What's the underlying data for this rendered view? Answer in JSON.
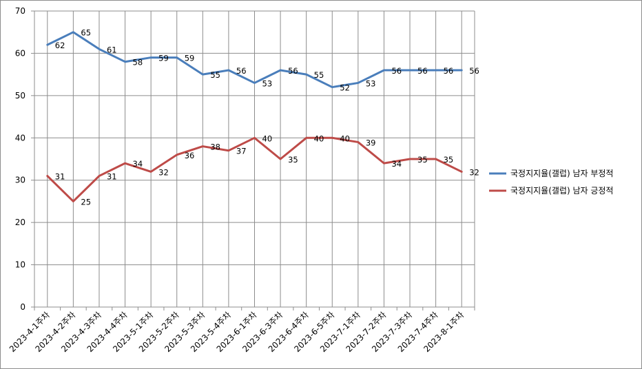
{
  "chart_data": {
    "type": "line",
    "categories": [
      "2023-4-1주차",
      "2023-4-2주차",
      "2023-4-3주차",
      "2023-4-4주차",
      "2023-5-1주차",
      "2023-5-2주차",
      "2023-5-3주차",
      "2023-5-4주차",
      "2023-6-1주차",
      "2023-6-3주차",
      "2023-6-4주차",
      "2023-6-5주차",
      "2023-7-1주차",
      "2023-7-2주차",
      "2023-7-3주차",
      "2023-7-4주차",
      "2023-8-1주차"
    ],
    "series": [
      {
        "name": "국정지지율(갤럽) 남자 부정적",
        "color": "#4a7ebb",
        "values": [
          62,
          65,
          61,
          58,
          59,
          59,
          55,
          56,
          53,
          56,
          55,
          52,
          53,
          56,
          56,
          56,
          56
        ]
      },
      {
        "name": "국정지지율(갤럽) 남자 긍정적",
        "color": "#be4b48",
        "values": [
          31,
          25,
          31,
          34,
          32,
          36,
          38,
          37,
          40,
          35,
          40,
          40,
          39,
          34,
          35,
          35,
          32
        ]
      }
    ],
    "ylim": [
      0,
      70
    ],
    "yticks": [
      0,
      10,
      20,
      30,
      40,
      50,
      60,
      70
    ],
    "grid": true,
    "data_labels": true,
    "legend_position": "right"
  }
}
